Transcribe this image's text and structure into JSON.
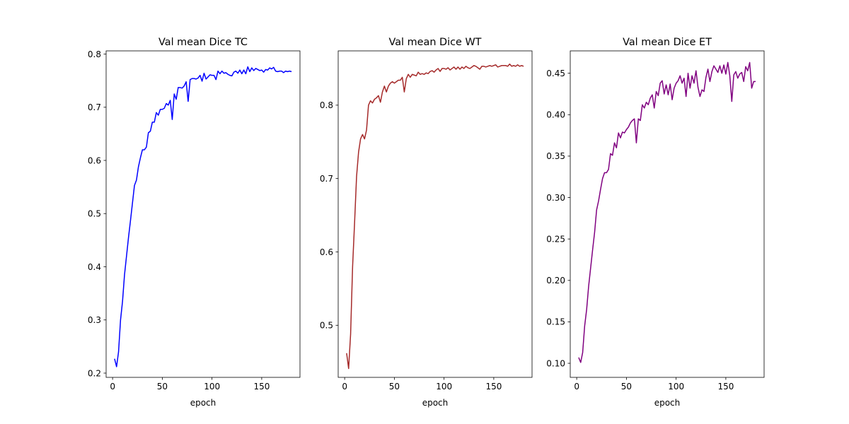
{
  "chart_data": [
    {
      "type": "line",
      "title": "Val mean Dice TC",
      "xlabel": "epoch",
      "ylabel": "",
      "xlim": [
        -6.5,
        188.5
      ],
      "ylim": [
        0.192,
        0.806
      ],
      "xticks": [
        0,
        50,
        100,
        150
      ],
      "yticks": [
        0.2,
        0.3,
        0.4,
        0.5,
        0.6,
        0.7,
        0.8
      ],
      "grid": false,
      "color": "#0000ff",
      "x_start": 2,
      "x_step": 2,
      "values": [
        0.227,
        0.212,
        0.24,
        0.3,
        0.335,
        0.385,
        0.42,
        0.455,
        0.487,
        0.52,
        0.553,
        0.563,
        0.588,
        0.605,
        0.62,
        0.62,
        0.625,
        0.652,
        0.655,
        0.672,
        0.672,
        0.69,
        0.685,
        0.696,
        0.696,
        0.698,
        0.707,
        0.704,
        0.713,
        0.677,
        0.725,
        0.715,
        0.737,
        0.737,
        0.736,
        0.74,
        0.748,
        0.711,
        0.752,
        0.754,
        0.754,
        0.753,
        0.755,
        0.76,
        0.749,
        0.764,
        0.753,
        0.757,
        0.761,
        0.76,
        0.76,
        0.752,
        0.768,
        0.763,
        0.768,
        0.764,
        0.765,
        0.762,
        0.76,
        0.759,
        0.766,
        0.768,
        0.764,
        0.77,
        0.763,
        0.77,
        0.763,
        0.776,
        0.767,
        0.774,
        0.769,
        0.773,
        0.771,
        0.769,
        0.77,
        0.766,
        0.771,
        0.77,
        0.774,
        0.772,
        0.775,
        0.768,
        0.767,
        0.768,
        0.768,
        0.765,
        0.768,
        0.767,
        0.768,
        0.767
      ]
    },
    {
      "type": "line",
      "title": "Val mean Dice WT",
      "xlabel": "epoch",
      "ylabel": "",
      "xlim": [
        -6.5,
        188.5
      ],
      "ylim": [
        0.429,
        0.874
      ],
      "xticks": [
        0,
        50,
        100,
        150
      ],
      "yticks": [
        0.5,
        0.6,
        0.7,
        0.8
      ],
      "grid": false,
      "color": "#a52a2a",
      "x_start": 2,
      "x_step": 2,
      "values": [
        0.462,
        0.441,
        0.488,
        0.58,
        0.64,
        0.703,
        0.736,
        0.754,
        0.76,
        0.754,
        0.766,
        0.8,
        0.806,
        0.803,
        0.808,
        0.81,
        0.813,
        0.804,
        0.818,
        0.826,
        0.818,
        0.826,
        0.83,
        0.832,
        0.83,
        0.832,
        0.834,
        0.834,
        0.838,
        0.818,
        0.836,
        0.842,
        0.838,
        0.842,
        0.841,
        0.84,
        0.845,
        0.842,
        0.843,
        0.842,
        0.844,
        0.843,
        0.846,
        0.847,
        0.845,
        0.848,
        0.85,
        0.846,
        0.85,
        0.85,
        0.849,
        0.851,
        0.848,
        0.85,
        0.852,
        0.849,
        0.852,
        0.849,
        0.852,
        0.85,
        0.853,
        0.851,
        0.85,
        0.852,
        0.854,
        0.853,
        0.851,
        0.849,
        0.853,
        0.853,
        0.852,
        0.853,
        0.854,
        0.853,
        0.854,
        0.855,
        0.852,
        0.853,
        0.854,
        0.854,
        0.854,
        0.853,
        0.856,
        0.853,
        0.854,
        0.853,
        0.855,
        0.853,
        0.854,
        0.853
      ]
    },
    {
      "type": "line",
      "title": "Val mean Dice ET",
      "xlabel": "epoch",
      "ylabel": "",
      "xlim": [
        -6.5,
        188.5
      ],
      "ylim": [
        0.083,
        0.477
      ],
      "xticks": [
        0,
        50,
        100,
        150
      ],
      "yticks": [
        0.1,
        0.15,
        0.2,
        0.25,
        0.3,
        0.35,
        0.4,
        0.45
      ],
      "grid": false,
      "color": "#800080",
      "x_start": 2,
      "x_step": 2,
      "values": [
        0.107,
        0.101,
        0.113,
        0.145,
        0.165,
        0.193,
        0.215,
        0.237,
        0.258,
        0.285,
        0.296,
        0.31,
        0.323,
        0.33,
        0.33,
        0.334,
        0.353,
        0.351,
        0.366,
        0.36,
        0.378,
        0.372,
        0.379,
        0.378,
        0.382,
        0.385,
        0.39,
        0.393,
        0.395,
        0.366,
        0.395,
        0.393,
        0.412,
        0.408,
        0.415,
        0.412,
        0.42,
        0.424,
        0.408,
        0.428,
        0.423,
        0.438,
        0.441,
        0.425,
        0.436,
        0.424,
        0.437,
        0.418,
        0.432,
        0.438,
        0.441,
        0.447,
        0.438,
        0.444,
        0.422,
        0.45,
        0.432,
        0.447,
        0.438,
        0.453,
        0.433,
        0.422,
        0.43,
        0.428,
        0.445,
        0.455,
        0.44,
        0.452,
        0.459,
        0.455,
        0.451,
        0.459,
        0.45,
        0.46,
        0.449,
        0.463,
        0.447,
        0.416,
        0.448,
        0.452,
        0.444,
        0.449,
        0.451,
        0.44,
        0.458,
        0.453,
        0.463,
        0.432,
        0.44,
        0.44
      ]
    }
  ]
}
